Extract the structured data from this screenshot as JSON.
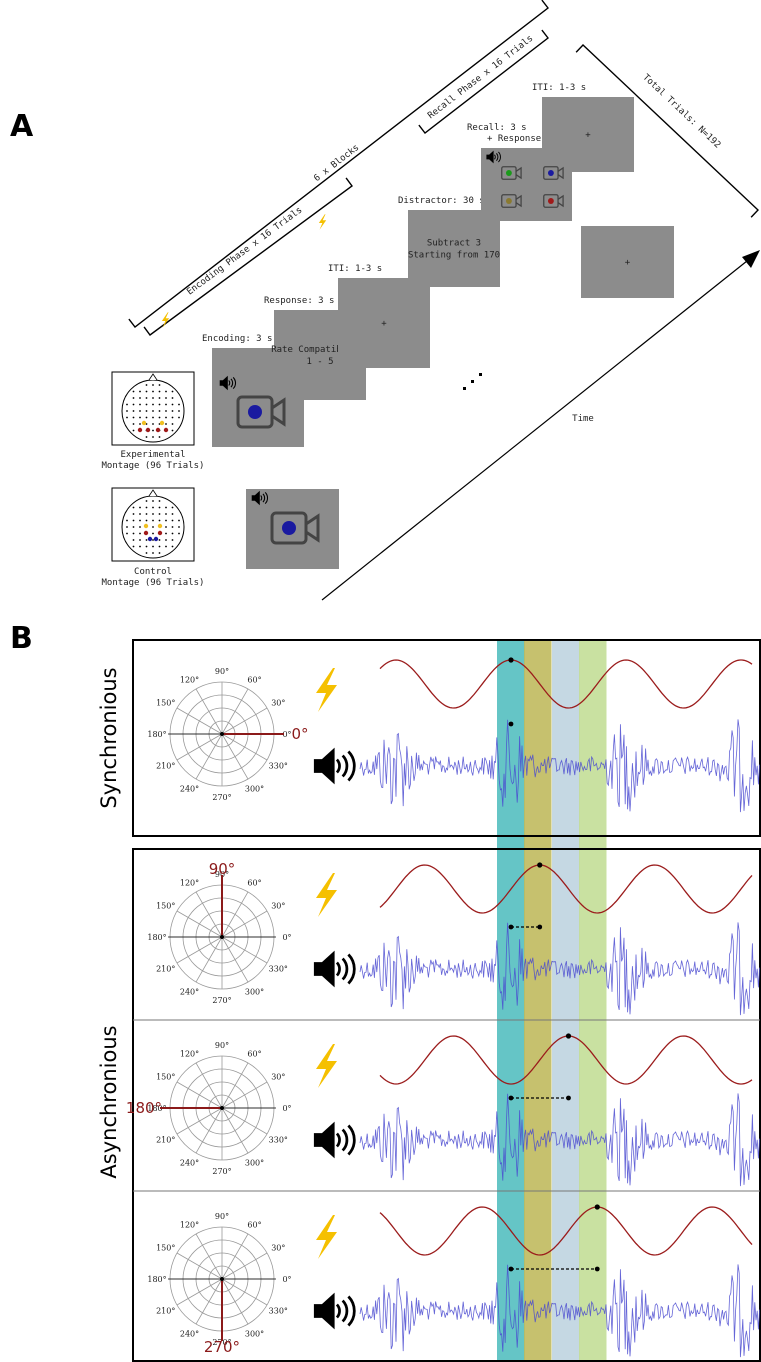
{
  "panel_a": {
    "label": "A",
    "brackets": {
      "blocks": "6 x Blocks",
      "recall": "Recall Phase x 16 Trials",
      "encoding": "Encoding Phase x 16 Trials",
      "total": "Total Trials: N=192"
    },
    "screens": {
      "encoding": {
        "label": "Encoding: 3 s"
      },
      "response": {
        "label": "Response: 3 s",
        "lines": [
          "Rate Compatibility",
          "1 - 5"
        ]
      },
      "iti": {
        "label": "ITI: 1-3 s",
        "lines": [
          "+"
        ]
      },
      "distractor": {
        "label": "Distractor: 30 s",
        "lines": [
          "Subtract 3",
          "Starting from 170"
        ]
      },
      "recall": {
        "label": [
          "Recall: 3 s",
          "+ Response"
        ]
      },
      "iti_recall": {
        "label": "ITI: 1-3 s",
        "lines": [
          "+"
        ]
      },
      "final": {
        "lines": [
          "+"
        ]
      }
    },
    "montages": {
      "experimental": [
        "Experimental",
        "Montage (96 Trials)"
      ],
      "control": [
        "Control",
        "Montage (96 Trials)"
      ]
    },
    "time": "Time"
  },
  "panel_b": {
    "label": "B",
    "polar_labels": [
      {
        "value": 0,
        "label": "0°"
      },
      {
        "value": 30,
        "label": "30°"
      },
      {
        "value": 60,
        "label": "60°"
      },
      {
        "value": 90,
        "label": "90°"
      },
      {
        "value": 120,
        "label": "120°"
      },
      {
        "value": 150,
        "label": "150°"
      },
      {
        "value": 180,
        "label": "180°"
      },
      {
        "value": 210,
        "label": "210°"
      },
      {
        "value": 240,
        "label": "240°"
      },
      {
        "value": 270,
        "label": "270°"
      },
      {
        "value": 300,
        "label": "300°"
      },
      {
        "value": 330,
        "label": "330°"
      }
    ],
    "synchronous": {
      "label": "Synchronious",
      "phase": {
        "value": 0,
        "label": "0°"
      }
    },
    "asynchronous": {
      "label": "Asynchronious",
      "phases": [
        {
          "value": 90,
          "label": "90°"
        },
        {
          "value": 180,
          "label": "180°"
        },
        {
          "value": 270,
          "label": "270°"
        }
      ]
    }
  }
}
